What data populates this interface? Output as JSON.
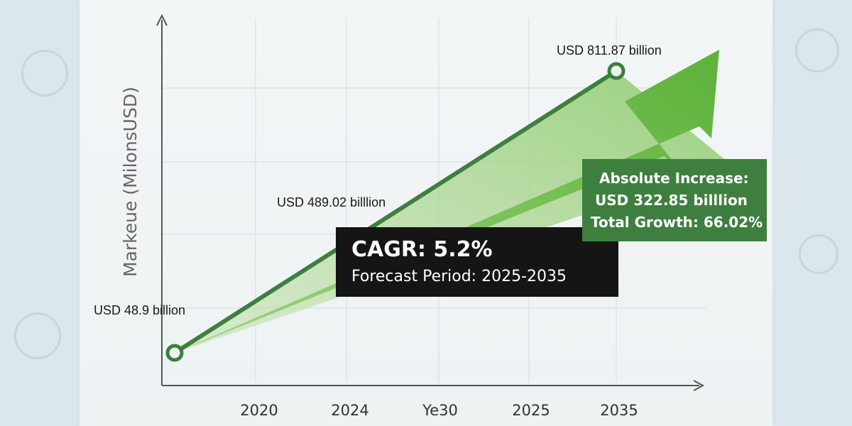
{
  "chart_data": {
    "type": "line",
    "ylabel": "Markeue (MilonsUSD)",
    "xlabel": "",
    "categories": [
      "2020",
      "2024",
      "Ye30",
      "2025",
      "2035"
    ],
    "series": [
      {
        "points": [
          {
            "x": "2015",
            "y": 48.9
          },
          {
            "x": "2035",
            "y": 811.87
          }
        ],
        "color": "#3e7f3f"
      }
    ],
    "grid": true,
    "annotations": {
      "start_label": "USD 48.9 billion",
      "mid_label": "USD 489.02 billlion",
      "end_label": "USD 811.87 billion"
    }
  },
  "cagr": {
    "title": "CAGR: 5.2%",
    "subtitle": "Forecast Period: 2025-2035"
  },
  "increase": {
    "line1": "Absolute Increase:",
    "line2": "USD 322.85 billlion",
    "line3": "Total Growth: 66.02%"
  },
  "colors": {
    "line": "#3e7f3f",
    "arrow": "#6cbf4a",
    "box_dark": "#151515",
    "box_green": "#3e7f3f"
  }
}
